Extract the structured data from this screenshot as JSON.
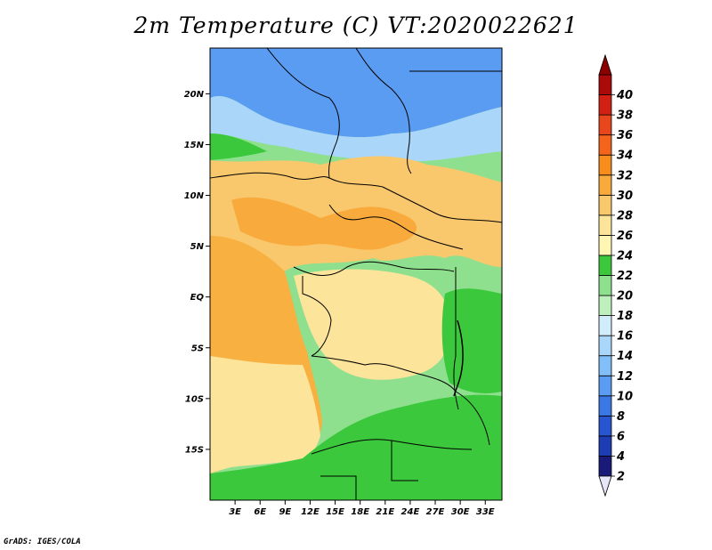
{
  "title": "2m Temperature (C) VT:2020022621",
  "credit": "GrADS: IGES/COLA",
  "axes": {
    "x_ticks": [
      "3E",
      "6E",
      "9E",
      "12E",
      "15E",
      "18E",
      "21E",
      "24E",
      "27E",
      "30E",
      "33E"
    ],
    "y_ticks": [
      "20N",
      "15N",
      "10N",
      "5N",
      "EQ",
      "5S",
      "10S",
      "15S"
    ]
  },
  "colorbar": {
    "labels": [
      "2",
      "4",
      "6",
      "8",
      "10",
      "12",
      "14",
      "16",
      "18",
      "20",
      "22",
      "24",
      "26",
      "28",
      "30",
      "32",
      "34",
      "36",
      "38",
      "40"
    ],
    "colors": [
      "#1a1a78",
      "#1e3cb4",
      "#2856d0",
      "#3a78e6",
      "#5a9cf2",
      "#82bef8",
      "#aad6fa",
      "#d2ecfc",
      "#bef0be",
      "#8ee08e",
      "#3cc83c",
      "#fff6b4",
      "#fce49a",
      "#fac86c",
      "#f8aa3c",
      "#f88c1c",
      "#f4641a",
      "#e8461c",
      "#d22014",
      "#aa0a0a"
    ],
    "under_color": "#e6e6f8",
    "over_color": "#8c0000"
  },
  "palette": {
    "ocean": "#f8b040",
    "ocean_south": "#fce49a",
    "sahara": "#5a9cf2",
    "sahel": "#aad6fa",
    "savanna": "#fac86c",
    "forest": "#fce49a",
    "green": "#3cc83c",
    "lightgreen": "#8ee08e",
    "border": "#000000"
  }
}
